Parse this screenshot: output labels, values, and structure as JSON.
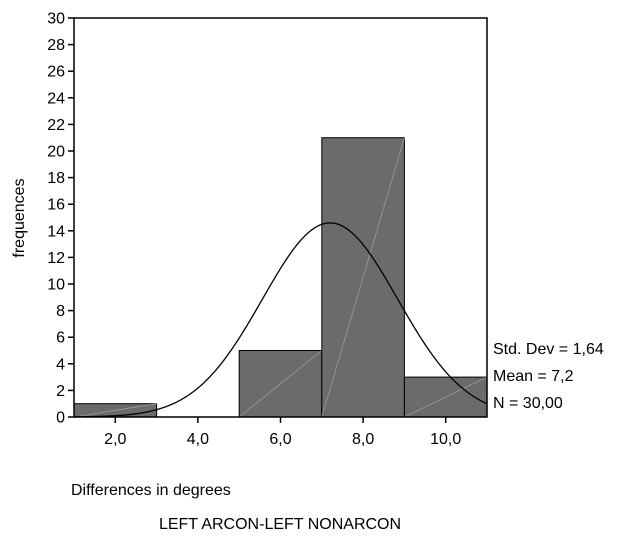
{
  "chart_data": {
    "type": "bar",
    "bins": [
      {
        "label": "2,0",
        "start": 1,
        "end": 3,
        "count": 1
      },
      {
        "label": "4,0",
        "start": 3,
        "end": 5,
        "count": 0
      },
      {
        "label": "6,0",
        "start": 5,
        "end": 7,
        "count": 5
      },
      {
        "label": "8,0",
        "start": 7,
        "end": 9,
        "count": 21
      },
      {
        "label": "10,0",
        "start": 9,
        "end": 11,
        "count": 3
      }
    ],
    "x_ticks": [
      2,
      4,
      6,
      8,
      10
    ],
    "x_tick_labels": [
      "2,0",
      "4,0",
      "6,0",
      "8,0",
      "10,0"
    ],
    "xlim": [
      1,
      11
    ],
    "y_ticks": [
      0,
      2,
      4,
      6,
      8,
      10,
      12,
      14,
      16,
      18,
      20,
      22,
      24,
      26,
      28,
      30
    ],
    "ylim": [
      0,
      30
    ],
    "ylabel": "frequences",
    "xlabel": "Differences in degrees",
    "subtitle": "LEFT ARCON-LEFT NONARCON",
    "normal_curve": {
      "mean": 7.2,
      "std_dev": 1.64,
      "n": 30
    },
    "stats": {
      "std_dev": "Std. Dev = 1,64",
      "mean": "Mean = 7,2",
      "n": "N = 30,00"
    },
    "bar_color": "#6b6b6b",
    "grid": false
  }
}
